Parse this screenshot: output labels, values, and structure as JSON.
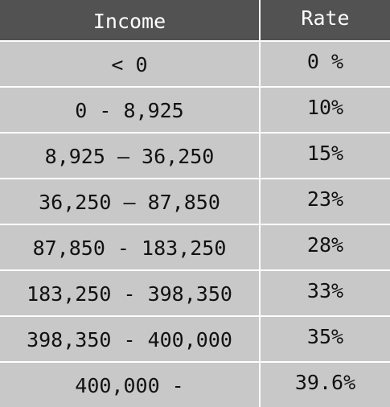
{
  "table": {
    "headers": {
      "income": "Income",
      "rate": "Rate"
    },
    "rows": [
      {
        "income": "< 0",
        "rate": "0 %"
      },
      {
        "income": "0 - 8,925",
        "rate": "10%"
      },
      {
        "income": "8,925 – 36,250",
        "rate": "15%"
      },
      {
        "income": "36,250 – 87,850",
        "rate": "23%"
      },
      {
        "income": "87,850 - 183,250",
        "rate": "28%"
      },
      {
        "income": "183,250 - 398,350",
        "rate": "33%"
      },
      {
        "income": "398,350 - 400,000",
        "rate": "35%"
      },
      {
        "income": "400,000 -",
        "rate": "39.6%"
      }
    ],
    "colors": {
      "header_background": "#525252",
      "row_background": "#c8c8c8",
      "grid_lines": "#ffffff"
    }
  }
}
